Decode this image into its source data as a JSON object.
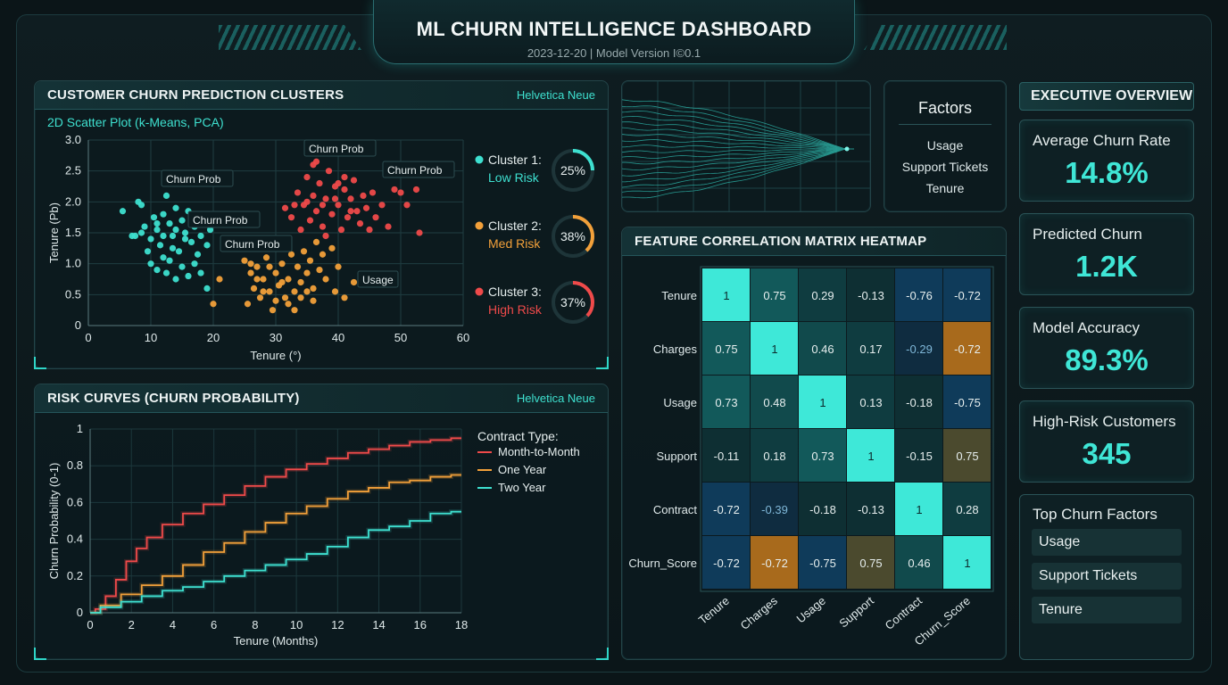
{
  "header": {
    "title": "ML CHURN INTELLIGENCE DASHBOARD",
    "subtitle": "2023-12-20 | Model Version I©0.1"
  },
  "scatter_panel": {
    "title": "CUSTOMER CHURN PREDICTION CLUSTERS",
    "tag": "Helvetica Neue",
    "subtitle": "2D Scatter Plot (k-Means, PCA)",
    "callouts": [
      "Churn Prob",
      "Churn Prob",
      "Churn Prob",
      "Churn Prob",
      "Churn Prob",
      "Usage"
    ]
  },
  "clusters": [
    {
      "name": "Cluster 1:",
      "risk": "Low Risk",
      "pct": "25%",
      "value": 25,
      "color": "#3ee0d0"
    },
    {
      "name": "Cluster 2:",
      "risk": "Med Risk",
      "pct": "38%",
      "value": 38,
      "color": "#f2a03a"
    },
    {
      "name": "Cluster 3:",
      "risk": "High Risk",
      "pct": "37%",
      "value": 37,
      "color": "#ef4a4a"
    }
  ],
  "risk_panel": {
    "title": "RISK CURVES (CHURN PROBABILITY)",
    "tag": "Helvetica Neue",
    "legend_title": "Contract Type:"
  },
  "factors_box": {
    "title": "Factors",
    "items": [
      "Usage",
      "Support Tickets",
      "Tenure"
    ]
  },
  "heatmap_panel": {
    "title": "FEATURE CORRELATION MATRIX HEATMAP"
  },
  "exec": {
    "title": "EXECUTIVE OVERVIEW",
    "kpis": [
      {
        "label": "Average Churn Rate",
        "value": "14.8%"
      },
      {
        "label": "Predicted Churn",
        "value": "1.2K"
      },
      {
        "label": "Model Accuracy",
        "value": "89.3%"
      },
      {
        "label": "High-Risk Customers",
        "value": "345"
      }
    ],
    "top_factors_title": "Top Churn Factors",
    "top_factors": [
      "Usage",
      "Support Tickets",
      "Tenure"
    ]
  },
  "chart_data": [
    {
      "type": "scatter",
      "xlabel": "Tenure (°)",
      "ylabel": "Tenure (Pb)",
      "xlim": [
        0,
        60
      ],
      "ylim": [
        0,
        3
      ],
      "xticks": [
        "0",
        "10",
        "20",
        "30",
        "40",
        "50",
        "60"
      ],
      "yticks": [
        "0",
        "0.5",
        "1.0",
        "1.5",
        "2.0",
        "2.5",
        "3.0"
      ],
      "grid": true,
      "series": [
        {
          "name": "Cluster 1: Low Risk",
          "color": "#3ee0d0",
          "points": [
            [
              5.5,
              1.85
            ],
            [
              8,
              2.0
            ],
            [
              8.5,
              1.95
            ],
            [
              9,
              1.6
            ],
            [
              10,
              1.4
            ],
            [
              10.5,
              1.75
            ],
            [
              11,
              1.55
            ],
            [
              11.5,
              1.3
            ],
            [
              12,
              1.8
            ],
            [
              12.5,
              2.1
            ],
            [
              13,
              1.65
            ],
            [
              13.5,
              1.45
            ],
            [
              14,
              1.9
            ],
            [
              14.5,
              1.2
            ],
            [
              15,
              1.7
            ],
            [
              15.5,
              1.5
            ],
            [
              16,
              1.85
            ],
            [
              16.5,
              1.35
            ],
            [
              17,
              1.6
            ],
            [
              17.5,
              1.15
            ],
            [
              18,
              1.45
            ],
            [
              18.5,
              1.75
            ],
            [
              19,
              1.3
            ],
            [
              9.5,
              1.2
            ],
            [
              10,
              1.0
            ],
            [
              11,
              0.9
            ],
            [
              12,
              1.1
            ],
            [
              12.5,
              0.85
            ],
            [
              13,
              1.05
            ],
            [
              14,
              0.75
            ],
            [
              15,
              0.95
            ],
            [
              16,
              0.8
            ],
            [
              17,
              1.0
            ],
            [
              18,
              0.85
            ],
            [
              19,
              0.6
            ],
            [
              7.5,
              1.45
            ],
            [
              8.5,
              1.5
            ],
            [
              13.5,
              1.25
            ],
            [
              15.5,
              1.4
            ],
            [
              16.5,
              1.65
            ],
            [
              19.5,
              1.55
            ],
            [
              11,
              1.65
            ],
            [
              12,
              1.45
            ],
            [
              14,
              1.55
            ],
            [
              7,
              1.45
            ]
          ]
        },
        {
          "name": "Cluster 2: Med Risk",
          "color": "#f2a03a",
          "points": [
            [
              20,
              0.35
            ],
            [
              21,
              0.75
            ],
            [
              25,
              1.05
            ],
            [
              25.5,
              0.35
            ],
            [
              26,
              0.85
            ],
            [
              26.5,
              0.6
            ],
            [
              27,
              0.95
            ],
            [
              27.5,
              0.45
            ],
            [
              28,
              0.75
            ],
            [
              28.5,
              1.1
            ],
            [
              29,
              0.55
            ],
            [
              29.5,
              0.25
            ],
            [
              30,
              0.85
            ],
            [
              30.5,
              0.65
            ],
            [
              31,
              1.0
            ],
            [
              31.5,
              0.45
            ],
            [
              32,
              0.75
            ],
            [
              32.5,
              1.15
            ],
            [
              33,
              0.55
            ],
            [
              33.5,
              0.95
            ],
            [
              34,
              0.7
            ],
            [
              34.5,
              1.2
            ],
            [
              35,
              0.85
            ],
            [
              35.5,
              1.05
            ],
            [
              36,
              0.6
            ],
            [
              36.5,
              1.35
            ],
            [
              37,
              0.9
            ],
            [
              37.5,
              1.15
            ],
            [
              38,
              0.75
            ],
            [
              39,
              1.25
            ],
            [
              39.5,
              0.55
            ],
            [
              40,
              0.95
            ],
            [
              41,
              0.45
            ],
            [
              42.5,
              0.7
            ],
            [
              26,
              1.0
            ],
            [
              27,
              0.75
            ],
            [
              28,
              0.55
            ],
            [
              29,
              0.95
            ],
            [
              30,
              0.4
            ],
            [
              31,
              0.7
            ],
            [
              32,
              0.35
            ],
            [
              33,
              0.25
            ],
            [
              34,
              0.45
            ],
            [
              35,
              0.55
            ],
            [
              36,
              0.4
            ]
          ]
        },
        {
          "name": "Cluster 3: High Risk",
          "color": "#ef4a4a",
          "points": [
            [
              31.5,
              1.9
            ],
            [
              32.5,
              1.75
            ],
            [
              33.5,
              2.15
            ],
            [
              34,
              1.55
            ],
            [
              34.5,
              1.95
            ],
            [
              35,
              2.4
            ],
            [
              35.5,
              1.7
            ],
            [
              36,
              2.1
            ],
            [
              36.5,
              1.85
            ],
            [
              37,
              2.3
            ],
            [
              37.5,
              1.6
            ],
            [
              38,
              2.05
            ],
            [
              38.5,
              2.5
            ],
            [
              39,
              1.8
            ],
            [
              39.5,
              2.25
            ],
            [
              40,
              1.95
            ],
            [
              40.5,
              1.55
            ],
            [
              41,
              2.2
            ],
            [
              41.5,
              1.75
            ],
            [
              42,
              2.05
            ],
            [
              42.5,
              2.35
            ],
            [
              43,
              1.85
            ],
            [
              43.5,
              1.65
            ],
            [
              44,
              2.1
            ],
            [
              44.5,
              1.9
            ],
            [
              45,
              1.55
            ],
            [
              45.5,
              2.15
            ],
            [
              46,
              1.75
            ],
            [
              47,
              1.95
            ],
            [
              48,
              1.6
            ],
            [
              49,
              2.2
            ],
            [
              50,
              2.15
            ],
            [
              51,
              1.95
            ],
            [
              52.5,
              2.2
            ],
            [
              53,
              1.5
            ],
            [
              36,
              2.6
            ],
            [
              36.5,
              2.65
            ],
            [
              39.5,
              2.05
            ],
            [
              41,
              2.4
            ],
            [
              37.5,
              1.95
            ],
            [
              38,
              1.45
            ],
            [
              40,
              2.3
            ],
            [
              42,
              1.85
            ],
            [
              35,
              2.0
            ],
            [
              33,
              1.95
            ]
          ]
        }
      ]
    },
    {
      "type": "line",
      "xlabel": "Tenure (Months)",
      "ylabel": "Churn Probability (0-1)",
      "xlim": [
        0,
        18
      ],
      "ylim": [
        0,
        1
      ],
      "xticks": [
        "0",
        "2",
        "4",
        "6",
        "8",
        "10",
        "12",
        "14",
        "16",
        "18"
      ],
      "yticks": [
        "0",
        "0.2",
        "0.4",
        "0.6",
        "0.8",
        "1"
      ],
      "grid": true,
      "legend": "top-right",
      "series": [
        {
          "name": "Month-to-Month",
          "color": "#ef4a4a",
          "x": [
            0,
            0.5,
            1,
            1.5,
            2,
            2.5,
            3,
            4,
            5,
            6,
            7,
            8,
            9,
            10,
            11,
            12,
            13,
            14,
            15,
            16,
            17,
            18
          ],
          "y": [
            0,
            0.02,
            0.09,
            0.18,
            0.28,
            0.35,
            0.41,
            0.48,
            0.54,
            0.59,
            0.64,
            0.69,
            0.74,
            0.78,
            0.81,
            0.84,
            0.87,
            0.89,
            0.91,
            0.93,
            0.94,
            0.95
          ]
        },
        {
          "name": "One Year",
          "color": "#f2a03a",
          "x": [
            0,
            1,
            2,
            3,
            4,
            5,
            6,
            7,
            8,
            9,
            10,
            11,
            12,
            13,
            14,
            15,
            16,
            17,
            18
          ],
          "y": [
            0,
            0.04,
            0.1,
            0.15,
            0.2,
            0.26,
            0.33,
            0.38,
            0.44,
            0.49,
            0.54,
            0.58,
            0.62,
            0.66,
            0.68,
            0.71,
            0.72,
            0.74,
            0.75
          ]
        },
        {
          "name": "Two Year",
          "color": "#3ee0d0",
          "x": [
            0,
            1,
            2,
            3,
            4,
            5,
            6,
            7,
            8,
            9,
            10,
            11,
            12,
            13,
            14,
            15,
            16,
            17,
            18
          ],
          "y": [
            0,
            0.03,
            0.06,
            0.09,
            0.12,
            0.14,
            0.17,
            0.2,
            0.23,
            0.26,
            0.29,
            0.32,
            0.36,
            0.41,
            0.45,
            0.47,
            0.5,
            0.54,
            0.55
          ]
        }
      ]
    },
    {
      "type": "heatmap",
      "row_labels": [
        "Tenure",
        "Charges",
        "Usage",
        "Support",
        "Contract",
        "Churn_Score"
      ],
      "col_labels": [
        "Tenure",
        "Charges",
        "Usage",
        "Support",
        "Contract",
        "Churn_Score"
      ],
      "values": [
        [
          1,
          0.75,
          0.29,
          -0.13,
          -0.76,
          -0.72
        ],
        [
          0.75,
          1,
          0.46,
          0.17,
          -0.29,
          -0.72
        ],
        [
          0.73,
          0.48,
          1,
          0.13,
          -0.18,
          -0.75
        ],
        [
          -0.11,
          0.18,
          0.73,
          1,
          -0.15,
          0.75
        ],
        [
          -0.72,
          -0.39,
          -0.18,
          -0.13,
          1,
          0.28
        ],
        [
          -0.72,
          -0.72,
          -0.75,
          0.75,
          0.46,
          1
        ]
      ]
    }
  ]
}
